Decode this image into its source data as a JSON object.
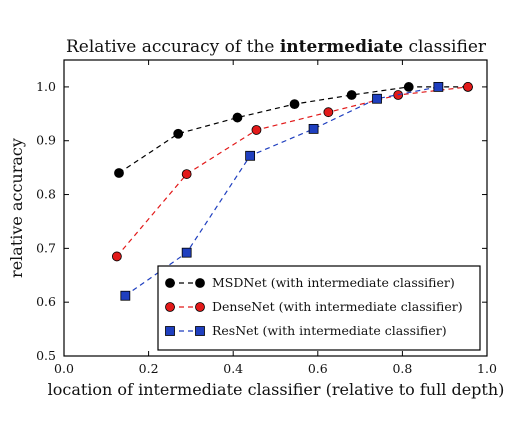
{
  "chart_data": {
    "type": "line",
    "title": {
      "pre": "Relative accuracy of the ",
      "bold": "intermediate",
      "post": " classifier"
    },
    "xlabel": "location of intermediate classifier (relative to full depth)",
    "ylabel": "relative accuracy",
    "xlim": [
      0.0,
      1.0
    ],
    "ylim": [
      0.5,
      1.05
    ],
    "xticks": [
      "0.0",
      "0.2",
      "0.4",
      "0.6",
      "0.8",
      "1.0"
    ],
    "yticks": [
      "0.5",
      "0.6",
      "0.7",
      "0.8",
      "0.9",
      "1.0"
    ],
    "grid": false,
    "legend_position": "lower-right",
    "series": [
      {
        "name": "MSDNet (with intermediate classifier)",
        "color": "#000000",
        "marker": "circle",
        "x": [
          0.13,
          0.27,
          0.41,
          0.545,
          0.68,
          0.815,
          0.955
        ],
        "y": [
          0.84,
          0.913,
          0.943,
          0.968,
          0.985,
          1.0,
          1.0
        ]
      },
      {
        "name": "DenseNet (with intermediate classifier)",
        "color": "#e21a1a",
        "marker": "circle",
        "x": [
          0.125,
          0.29,
          0.455,
          0.625,
          0.79,
          0.955
        ],
        "y": [
          0.685,
          0.838,
          0.92,
          0.953,
          0.985,
          1.0
        ]
      },
      {
        "name": "ResNet (with intermediate classifier)",
        "color": "#1f3fbf",
        "marker": "square",
        "x": [
          0.145,
          0.29,
          0.44,
          0.59,
          0.74,
          0.885
        ],
        "y": [
          0.612,
          0.692,
          0.872,
          0.922,
          0.978,
          1.0
        ]
      }
    ]
  }
}
